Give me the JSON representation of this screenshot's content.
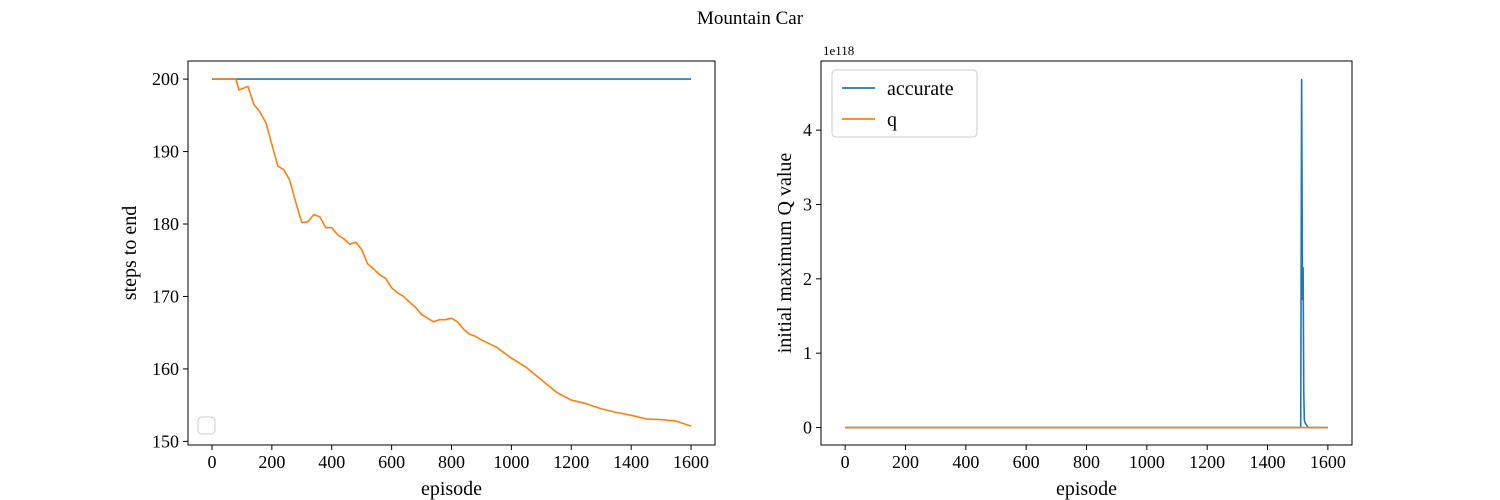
{
  "figure": {
    "title": "Mountain Car"
  },
  "chart_data": [
    {
      "type": "line",
      "xlabel": "episode",
      "ylabel": "steps to end",
      "xlim": [
        -80,
        1680
      ],
      "ylim": [
        149.5,
        202.5
      ],
      "xticks": [
        0,
        200,
        400,
        600,
        800,
        1000,
        1200,
        1400,
        1600
      ],
      "yticks": [
        150,
        160,
        170,
        180,
        190,
        200
      ],
      "legend": {
        "placement": "lower-left",
        "entries": []
      },
      "series": [
        {
          "color": "#1f77b4",
          "x": [
            0,
            1600
          ],
          "y": [
            200,
            200
          ]
        },
        {
          "color": "#ff7f0e",
          "x": [
            0,
            80,
            90,
            120,
            140,
            160,
            180,
            200,
            220,
            240,
            260,
            280,
            300,
            320,
            340,
            360,
            380,
            400,
            420,
            440,
            460,
            480,
            500,
            520,
            540,
            560,
            580,
            600,
            620,
            640,
            660,
            680,
            700,
            720,
            740,
            760,
            780,
            800,
            820,
            840,
            860,
            880,
            900,
            950,
            1000,
            1050,
            1100,
            1150,
            1200,
            1250,
            1300,
            1350,
            1400,
            1450,
            1500,
            1550,
            1600
          ],
          "y": [
            200,
            200,
            198.5,
            199,
            196.5,
            195.5,
            194,
            191,
            188,
            187.5,
            186,
            183,
            180.2,
            180.3,
            181.3,
            181,
            179.5,
            179.5,
            178.5,
            178,
            177.2,
            177.5,
            176.5,
            174.5,
            173.8,
            173,
            172.5,
            171.2,
            170.5,
            170,
            169.2,
            168.5,
            167.5,
            167,
            166.5,
            166.8,
            166.8,
            167,
            166.5,
            165.5,
            164.8,
            164.5,
            164,
            163,
            161.5,
            160.2,
            158.5,
            156.8,
            155.7,
            155.2,
            154.5,
            154,
            153.6,
            153.1,
            153.0,
            152.8,
            152.1
          ]
        }
      ]
    },
    {
      "type": "line",
      "xlabel": "episode",
      "ylabel": "initial maximum Q value",
      "y_offset_label": "1e118",
      "xlim": [
        -80,
        1680
      ],
      "ylim": [
        -0.235,
        4.93
      ],
      "xticks": [
        0,
        200,
        400,
        600,
        800,
        1000,
        1200,
        1400,
        1600
      ],
      "yticks": [
        0,
        1,
        2,
        3,
        4
      ],
      "legend": {
        "placement": "upper-left",
        "entries": [
          {
            "label": "accurate",
            "color": "#1f77b4"
          },
          {
            "label": "q",
            "color": "#ff7f0e"
          }
        ]
      },
      "series": [
        {
          "name": "accurate",
          "color": "#1f77b4",
          "x": [
            0,
            1510,
            1513,
            1516,
            1518,
            1520,
            1522,
            1525,
            1530,
            1535,
            1600
          ],
          "y": [
            0,
            0,
            4.68,
            1.72,
            2.15,
            0.5,
            0.1,
            0.06,
            0.03,
            0,
            0
          ]
        },
        {
          "name": "q",
          "color": "#ff7f0e",
          "x": [
            0,
            1600
          ],
          "y": [
            0,
            0
          ]
        }
      ]
    }
  ]
}
